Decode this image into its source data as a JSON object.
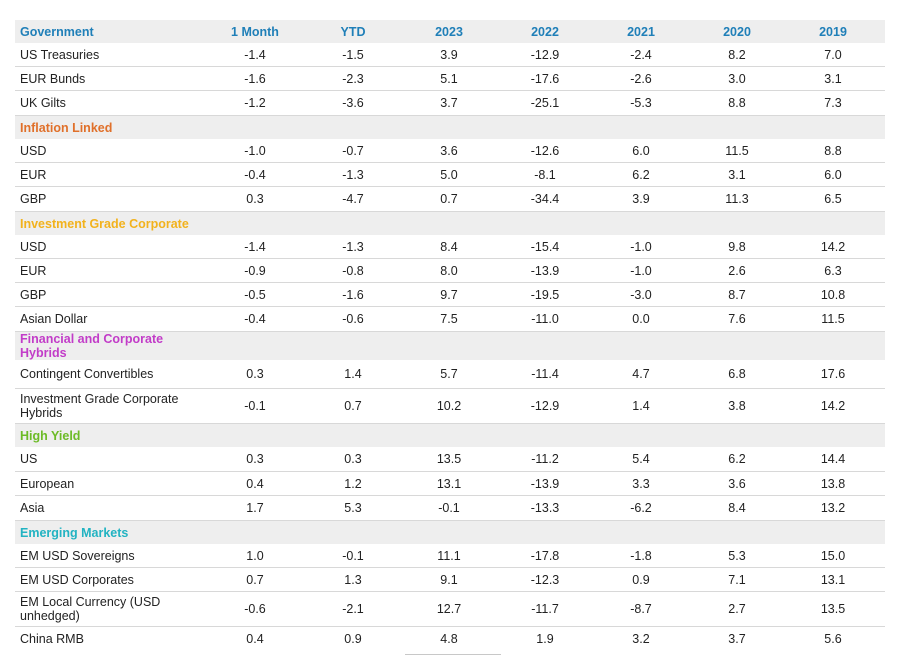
{
  "columns": [
    "1 Month",
    "YTD",
    "2023",
    "2022",
    "2021",
    "2020",
    "2019"
  ],
  "sections": [
    {
      "title": "Government",
      "color": "#1f7fb8",
      "rows": [
        {
          "label": "US Treasuries",
          "values": [
            "-1.4",
            "-1.5",
            "3.9",
            "-12.9",
            "-2.4",
            "8.2",
            "7.0"
          ]
        },
        {
          "label": "EUR Bunds",
          "values": [
            "-1.6",
            "-2.3",
            "5.1",
            "-17.6",
            "-2.6",
            "3.0",
            "3.1"
          ]
        },
        {
          "label": "UK Gilts",
          "values": [
            "-1.2",
            "-3.6",
            "3.7",
            "-25.1",
            "-5.3",
            "8.8",
            "7.3"
          ]
        }
      ]
    },
    {
      "title": "Inflation Linked",
      "color": "#e0702a",
      "rows": [
        {
          "label": "USD",
          "values": [
            "-1.0",
            "-0.7",
            "3.6",
            "-12.6",
            "6.0",
            "11.5",
            "8.8"
          ]
        },
        {
          "label": "EUR",
          "values": [
            "-0.4",
            "-1.3",
            "5.0",
            "-8.1",
            "6.2",
            "3.1",
            "6.0"
          ]
        },
        {
          "label": "GBP",
          "values": [
            "0.3",
            "-4.7",
            "0.7",
            "-34.4",
            "3.9",
            "11.3",
            "6.5"
          ]
        }
      ]
    },
    {
      "title": "Investment Grade Corporate",
      "color": "#f2b21d",
      "rows": [
        {
          "label": "USD",
          "values": [
            "-1.4",
            "-1.3",
            "8.4",
            "-15.4",
            "-1.0",
            "9.8",
            "14.2"
          ]
        },
        {
          "label": "EUR",
          "values": [
            "-0.9",
            "-0.8",
            "8.0",
            "-13.9",
            "-1.0",
            "2.6",
            "6.3"
          ]
        },
        {
          "label": "GBP",
          "values": [
            "-0.5",
            "-1.6",
            "9.7",
            "-19.5",
            "-3.0",
            "8.7",
            "10.8"
          ]
        },
        {
          "label": "Asian Dollar",
          "values": [
            "-0.4",
            "-0.6",
            "7.5",
            "-11.0",
            "0.0",
            "7.6",
            "11.5"
          ]
        }
      ]
    },
    {
      "title": "Financial and Corporate Hybrids",
      "color": "#c23cc8",
      "rows": [
        {
          "label": "Contingent Convertibles",
          "values": [
            "0.3",
            "1.4",
            "5.7",
            "-11.4",
            "4.7",
            "6.8",
            "17.6"
          ]
        },
        {
          "label": "Investment Grade Corporate Hybrids",
          "values": [
            "-0.1",
            "0.7",
            "10.2",
            "-12.9",
            "1.4",
            "3.8",
            "14.2"
          ]
        }
      ]
    },
    {
      "title": "High Yield",
      "color": "#6cbb26",
      "rows": [
        {
          "label": "US",
          "values": [
            "0.3",
            "0.3",
            "13.5",
            "-11.2",
            "5.4",
            "6.2",
            "14.4"
          ]
        },
        {
          "label": "European",
          "values": [
            "0.4",
            "1.2",
            "13.1",
            "-13.9",
            "3.3",
            "3.6",
            "13.8"
          ]
        },
        {
          "label": "Asia",
          "values": [
            "1.7",
            "5.3",
            "-0.1",
            "-13.3",
            "-6.2",
            "8.4",
            "13.2"
          ]
        }
      ]
    },
    {
      "title": "Emerging Markets",
      "color": "#22b3c2",
      "rows": [
        {
          "label": "EM USD Sovereigns",
          "values": [
            "1.0",
            "-0.1",
            "11.1",
            "-17.8",
            "-1.8",
            "5.3",
            "15.0"
          ]
        },
        {
          "label": "EM USD Corporates",
          "values": [
            "0.7",
            "1.3",
            "9.1",
            "-12.3",
            "0.9",
            "7.1",
            "13.1"
          ]
        },
        {
          "label": "EM Local Currency (USD unhedged)",
          "values": [
            "-0.6",
            "-2.1",
            "12.7",
            "-11.7",
            "-8.7",
            "2.7",
            "13.5"
          ]
        },
        {
          "label": "China RMB",
          "values": [
            "0.4",
            "0.9",
            "4.8",
            "1.9",
            "3.2",
            "3.7",
            "5.6"
          ]
        }
      ]
    }
  ]
}
